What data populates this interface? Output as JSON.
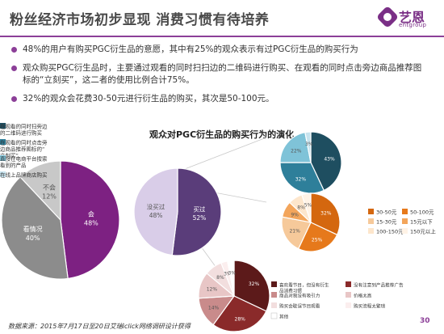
{
  "header": {
    "title": "粉丝经济市场初步显现  消费习惯有待培养",
    "logo_text": "艺恩",
    "logo_sub": "entgroup"
  },
  "bullets": [
    "48%的用户有购买PGC衍生品的意愿，其中有25%的观众表示有过PGC衍生品的购买行为",
    "观众购买PGC衍生品时，主要通过观看的同时扫扫边的二维码进行购买、在观看的同时点击旁边商品推荐图标的“立刻买”，这二者的使用比例合计75%。",
    "32%的观众会花费30-50元进行衍生品的购买，其次是50-100元。"
  ],
  "footer": {
    "source": "数据来源：2015年7月17日至20日艾瑞iclick网络调研设计获得",
    "page": "30"
  },
  "colors": {
    "brand": "#8c3f98"
  },
  "chart_data": [
    {
      "type": "pie",
      "title": "",
      "slices": [
        {
          "label": "会",
          "value": 48,
          "color": "#7d2182"
        },
        {
          "label": "看情况",
          "value": 40,
          "color": "#8c8c8c"
        },
        {
          "label": "不会",
          "value": 12,
          "color": "#c8c8c8"
        }
      ]
    },
    {
      "type": "pie",
      "title": "观众对PGC衍生品的购买行为的演化",
      "slices": [
        {
          "label": "买过",
          "value": 52,
          "color": "#5a3d7a"
        },
        {
          "label": "没买过",
          "value": 48,
          "color": "#d9cde8"
        }
      ]
    },
    {
      "type": "pie",
      "title": "",
      "slices": [
        {
          "label": "在观看的同时扫旁边的二维码进行购买",
          "value": 43,
          "color": "#1e4e60"
        },
        {
          "label": "在观看的同时点击旁边商品推荐图标的“立刻买”",
          "value": 32,
          "color": "#2e7f9a"
        },
        {
          "label": "直接在电商平台搜索看到的产品",
          "value": 22,
          "color": "#7fc3d8"
        },
        {
          "label": "在线上品牌商店购买",
          "value": 3,
          "color": "#c7e3ee"
        }
      ]
    },
    {
      "type": "pie",
      "title": "",
      "slices": [
        {
          "label": "30-50元",
          "value": 32,
          "color": "#d4670f"
        },
        {
          "label": "50-100元",
          "value": 25,
          "color": "#e6791b"
        },
        {
          "label": "15-30元",
          "value": 21,
          "color": "#f6c99a"
        },
        {
          "label": "15元以下",
          "value": 9,
          "color": "#f3a55b"
        },
        {
          "label": "100-150元",
          "value": 8,
          "color": "#fde6cc"
        },
        {
          "label": "150元以上",
          "value": 5,
          "color": "#fff3e6"
        }
      ]
    },
    {
      "type": "pie",
      "title": "",
      "slices": [
        {
          "label": "喜欢看节目，但没有衍生品消费习惯",
          "value": 32,
          "color": "#5c1a1a"
        },
        {
          "label": "没有注意到产品推荐广告",
          "value": 28,
          "color": "#8a2a2a"
        },
        {
          "label": "商品对我没有吸引力",
          "value": 14,
          "color": "#c98b8b"
        },
        {
          "label": "价格太高",
          "value": 12,
          "color": "#e8c6c6"
        },
        {
          "label": "购买会耽误节目观看",
          "value": 8,
          "color": "#f2dede"
        },
        {
          "label": "购买流程太繁琐",
          "value": 3,
          "color": "#fbeeee"
        },
        {
          "label": "其他",
          "value": 3,
          "color": "#ffffff"
        }
      ]
    }
  ]
}
